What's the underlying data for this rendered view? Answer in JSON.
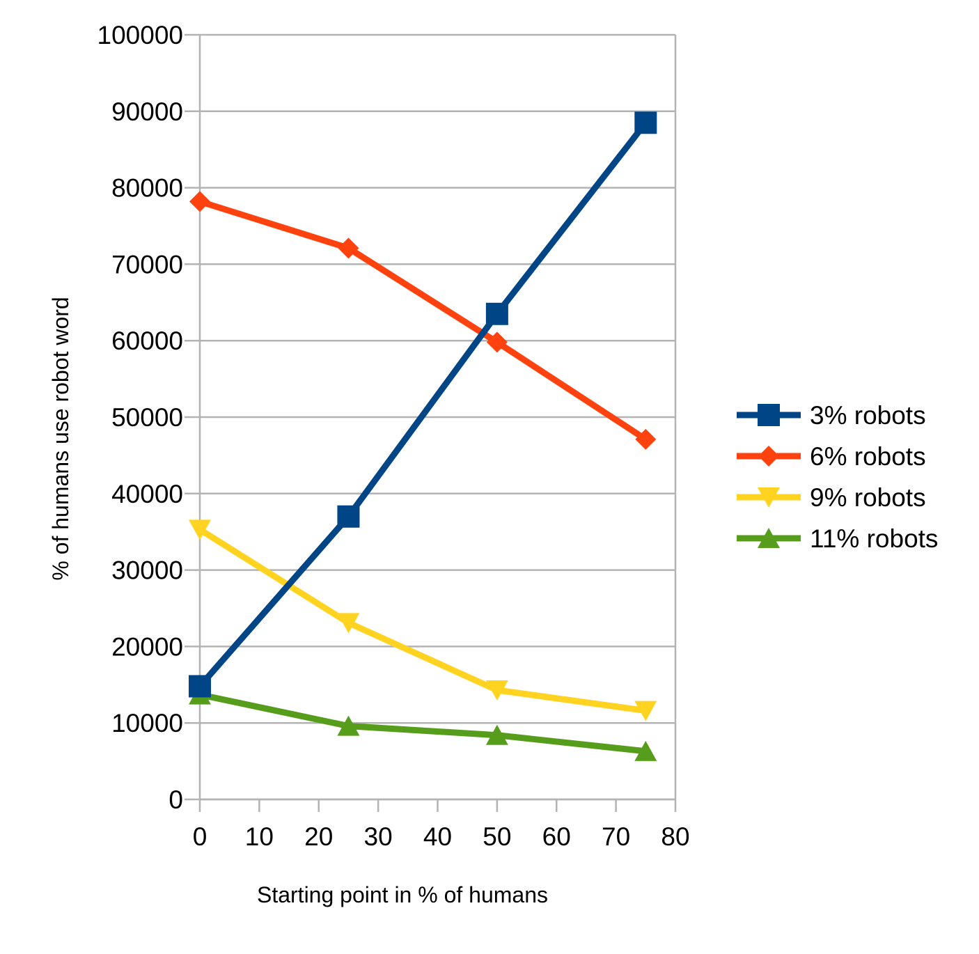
{
  "chart_data": {
    "type": "line",
    "title": "",
    "xlabel": "Starting point in % of humans",
    "ylabel": "% of humans use robot word",
    "xlim": [
      0,
      80
    ],
    "ylim": [
      0,
      100000
    ],
    "x_ticks": [
      "0",
      "10",
      "20",
      "30",
      "40",
      "50",
      "60",
      "70",
      "80"
    ],
    "y_ticks": [
      "0",
      "10000",
      "20000",
      "30000",
      "40000",
      "50000",
      "60000",
      "70000",
      "80000",
      "90000",
      "100000"
    ],
    "grid": "horizontal",
    "legend_position": "right",
    "x": [
      0,
      25,
      50,
      75
    ],
    "series": [
      {
        "name": "3% robots",
        "color": "#004586",
        "marker": "square",
        "values": [
          14800,
          37000,
          63500,
          88500
        ]
      },
      {
        "name": "6% robots",
        "color": "#ff420e",
        "marker": "diamond",
        "values": [
          78200,
          72100,
          59800,
          47100
        ]
      },
      {
        "name": "9% robots",
        "color": "#ffd320",
        "marker": "triangle-down",
        "values": [
          35300,
          23100,
          14300,
          11600
        ]
      },
      {
        "name": "11% robots",
        "color": "#579d1c",
        "marker": "triangle-up",
        "values": [
          13700,
          9600,
          8400,
          6300
        ]
      }
    ]
  }
}
